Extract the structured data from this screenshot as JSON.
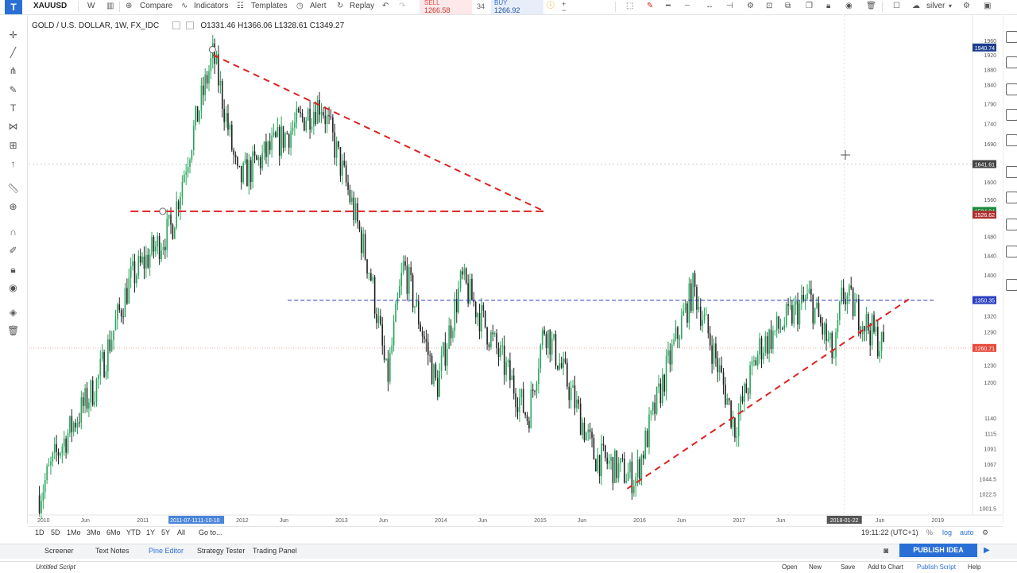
{
  "toolbar": {
    "symbol": "XAUUSD",
    "interval": "W",
    "compare": "Compare",
    "indicators": "Indicators",
    "templates": "Templates",
    "alert": "Alert",
    "replay": "Replay",
    "sell_label": "SELL",
    "sell_price": "1266.58",
    "spread": "34",
    "buy_label": "BUY",
    "buy_price": "1266.92",
    "theme": "silver"
  },
  "legend": {
    "title": "GOLD / U.S. DOLLAR, 1W, FX_IDC",
    "open": "O1331.46",
    "high": "H1366.06",
    "low": "L1328.61",
    "close": "C1349.27"
  },
  "bottom": {
    "ranges": [
      "1D",
      "5D",
      "1Mo",
      "3Mo",
      "6Mo",
      "YTD",
      "1Y",
      "5Y",
      "All"
    ],
    "goto": "Go to...",
    "clock": "19:11:22 (UTC+1)",
    "log": "log",
    "auto": "auto"
  },
  "panels": {
    "tabs": [
      "Screener",
      "Text Notes",
      "Pine Editor",
      "Strategy Tester",
      "Trading Panel"
    ],
    "active": "Pine Editor",
    "publish": "PUBLISH IDEA"
  },
  "status": {
    "script": "Untitled Script",
    "open": "Open",
    "new": "New",
    "save": "Save",
    "add_to_chart": "Add to Chart",
    "publish_script": "Publish Script",
    "help": "Help"
  },
  "colors": {
    "up": "#26a65b",
    "down": "#222222",
    "trendline": "#e02020",
    "resistance": "#3030c0",
    "current": "#e74c3c",
    "accent": "#2a6fd6"
  },
  "chart_data": {
    "type": "candlestick",
    "symbol": "GOLD / U.S. DOLLAR",
    "timeframe": "1W",
    "x_ticks": [
      "2010",
      "Jun",
      "2011",
      "2012",
      "Jun",
      "2013",
      "Jun",
      "2014",
      "Jun",
      "2015",
      "Jun",
      "2016",
      "Jun",
      "2017",
      "Jun",
      "Jun",
      "2019"
    ],
    "x_highlight": [
      "2011-07-11",
      "11-10-10",
      "2018-01-22"
    ],
    "y_ticks": [
      1960,
      1920,
      1880,
      1840,
      1790,
      1740,
      1690,
      1600,
      1560,
      1480,
      1440,
      1400,
      1320,
      1290,
      1230,
      1200,
      1140,
      1115,
      1091,
      1067,
      1044.5,
      1022.5,
      1001.5
    ],
    "price_labels": {
      "top": "1940.74",
      "crosshair": "1641.61",
      "level_a": "1534.84",
      "level_b": "1526.62",
      "resistance": "1350.35",
      "current": "1260.71"
    },
    "path": [
      {
        "date": "2009-12",
        "price": 1020
      },
      {
        "date": "2010-02",
        "price": 1080
      },
      {
        "date": "2010-07",
        "price": 1200
      },
      {
        "date": "2010-11",
        "price": 1390
      },
      {
        "date": "2011-04",
        "price": 1500
      },
      {
        "date": "2011-09",
        "price": 1920
      },
      {
        "date": "2011-12",
        "price": 1600
      },
      {
        "date": "2012-10",
        "price": 1795
      },
      {
        "date": "2013-04",
        "price": 1400
      },
      {
        "date": "2013-06",
        "price": 1200
      },
      {
        "date": "2013-08",
        "price": 1420
      },
      {
        "date": "2013-12",
        "price": 1190
      },
      {
        "date": "2014-03",
        "price": 1390
      },
      {
        "date": "2014-11",
        "price": 1140
      },
      {
        "date": "2015-01",
        "price": 1300
      },
      {
        "date": "2015-07",
        "price": 1080
      },
      {
        "date": "2015-12",
        "price": 1045
      },
      {
        "date": "2016-07",
        "price": 1375
      },
      {
        "date": "2016-12",
        "price": 1125
      },
      {
        "date": "2017-03",
        "price": 1260
      },
      {
        "date": "2017-09",
        "price": 1355
      },
      {
        "date": "2017-12",
        "price": 1240
      },
      {
        "date": "2018-01",
        "price": 1365
      },
      {
        "date": "2018-06",
        "price": 1260
      }
    ],
    "drawings": [
      {
        "kind": "trendline",
        "from": {
          "date": "2011-09",
          "price": 1920
        },
        "to": {
          "date": "2015-01",
          "price": 1534
        }
      },
      {
        "kind": "horizontal",
        "price": 1534,
        "from_date": "2010-11",
        "to_date": "2015-01"
      },
      {
        "kind": "horizontal",
        "price": 1350,
        "from_date": "2012-06",
        "to_date": "2018-12"
      },
      {
        "kind": "trendline",
        "from": {
          "date": "2015-11",
          "price": 1030
        },
        "to": {
          "date": "2018-09",
          "price": 1352
        }
      }
    ]
  }
}
